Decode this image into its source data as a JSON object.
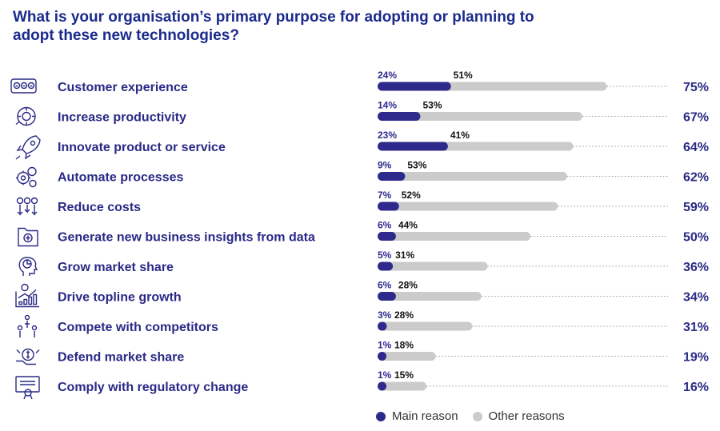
{
  "title": "What is your organisation’s primary purpose for adopting or planning to adopt these new technologies?",
  "colors": {
    "main": "#2e2a8c",
    "other": "#cbcbcb",
    "text": "#2a2a86"
  },
  "legend": {
    "main": "Main reason",
    "other": "Other reasons"
  },
  "chart_data": {
    "type": "bar",
    "orientation": "horizontal",
    "stacked": true,
    "title": "What is your organisation’s primary purpose for adopting or planning to adopt these new technologies?",
    "categories": [
      "Customer experience",
      "Increase productivity",
      "Innovate product or service",
      "Automate processes",
      "Reduce costs",
      "Generate new business insights from data",
      "Grow market share",
      "Drive topline growth",
      "Compete with competitors",
      "Defend market share",
      "Comply with regulatory change"
    ],
    "icons": [
      "customer-faces-icon",
      "clock-gear-icon",
      "rocket-icon",
      "gears-icon",
      "coins-arrows-icon",
      "folder-plus-icon",
      "head-chart-icon",
      "growth-chart-icon",
      "competitors-icon",
      "shield-hand-icon",
      "certificate-icon"
    ],
    "series": [
      {
        "name": "Main reason",
        "values": [
          24,
          14,
          23,
          9,
          7,
          6,
          5,
          6,
          3,
          1,
          1
        ]
      },
      {
        "name": "Other reasons",
        "values": [
          51,
          53,
          41,
          53,
          52,
          44,
          31,
          28,
          28,
          18,
          15
        ]
      }
    ],
    "totals": [
      "75%",
      "67%",
      "64%",
      "62%",
      "59%",
      "50%",
      "36%",
      "34%",
      "31%",
      "19%",
      "16%"
    ],
    "unit": "%",
    "xlim": [
      0,
      100
    ],
    "legend_position": "bottom"
  }
}
